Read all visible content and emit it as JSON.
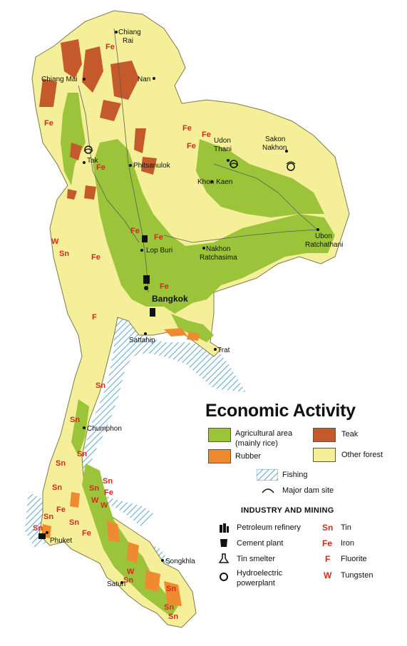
{
  "title": "Economic Activity",
  "colors": {
    "agricultural": "#9cc43a",
    "teak": "#c45a2c",
    "rubber": "#f08a30",
    "other_forest": "#f6ef9a",
    "fishing": "#5aa6d8",
    "symbol_red": "#d42a1e",
    "water": "#ffffff"
  },
  "legend": {
    "agricultural": "Agricultural area",
    "agricultural_sub": "(mainly rice)",
    "teak": "Teak",
    "rubber": "Rubber",
    "other_forest": "Other forest",
    "fishing": "Fishing",
    "dam": "Major dam site",
    "industry_heading": "INDUSTRY AND MINING",
    "petroleum": "Petroleum refinery",
    "cement": "Cement plant",
    "tin_smelter": "Tin smelter",
    "hydro_1": "Hydroelectric",
    "hydro_2": "powerplant",
    "sn_symbol": "Sn",
    "sn_label": "Tin",
    "fe_symbol": "Fe",
    "fe_label": "Iron",
    "f_symbol": "F",
    "f_label": "Fluorite",
    "w_symbol": "W",
    "w_label": "Tungsten"
  },
  "cities": {
    "chiang_rai_1": "Chiang",
    "chiang_rai_2": "Rai",
    "chiang_mai": "Chiang Mai",
    "nan": "Nan",
    "tak": "Tak",
    "phitsanulok": "Phitsanulok",
    "udon_1": "Udon",
    "udon_2": "Thani",
    "sakon_1": "Sakon",
    "sakon_2": "Nakhon",
    "khon_kaen": "Khon Kaen",
    "lop_buri": "Lop Buri",
    "nakhon_1": "Nakhon",
    "nakhon_2": "Ratchasima",
    "ubon_1": "Ubon",
    "ubon_2": "Ratchathani",
    "bangkok": "Bangkok",
    "sattahip": "Sattahip",
    "trat": "Trat",
    "chumphon": "Chumphon",
    "phuket": "Phuket",
    "songkhla": "Songkhla",
    "satun": "Satun"
  }
}
